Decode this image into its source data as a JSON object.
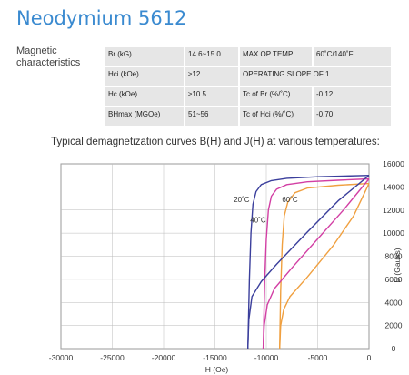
{
  "title": "Neodymium 5612",
  "magnetic_label_line1": "Magnetic",
  "magnetic_label_line2": "characteristics",
  "specs": [
    {
      "k1": "Br (kG)",
      "v1": "14.6~15.0",
      "k2": "MAX OP TEMP",
      "v2": "60˚C/140˚F"
    },
    {
      "k1": "Hci (kOe)",
      "v1": "≥12",
      "k2": "OPERATING SLOPE OF 1",
      "v2": ""
    },
    {
      "k1": "Hc (kOe)",
      "v1": "≥10.5",
      "k2": "Tc of Br (%/˚C)",
      "v2": "-0.12"
    },
    {
      "k1": "BHmax (MGOe)",
      "v1": "51~56",
      "k2": "Tc of Hci (%/˚C)",
      "v2": "-0.70"
    }
  ],
  "chart_caption": "Typical demagnetization curves B(H) and J(H) at various temperatures:",
  "chart_data": {
    "type": "line",
    "xlabel": "H (Oe)",
    "ylabel": "B (Gauss)",
    "xlim": [
      -30000,
      0
    ],
    "ylim": [
      0,
      16000
    ],
    "x_ticks": [
      -30000,
      -25000,
      -20000,
      -15000,
      -10000,
      -5000,
      0
    ],
    "y_ticks": [
      0,
      2000,
      4000,
      6000,
      8000,
      10000,
      12000,
      14000,
      16000
    ],
    "grid": true,
    "series": [
      {
        "name": "20˚C",
        "color": "#3b3f9c",
        "kind": "J",
        "points": [
          [
            -11800,
            0
          ],
          [
            -11650,
            6000
          ],
          [
            -11500,
            10000
          ],
          [
            -11300,
            12500
          ],
          [
            -11000,
            13600
          ],
          [
            -10500,
            14200
          ],
          [
            -9500,
            14550
          ],
          [
            -8000,
            14750
          ],
          [
            -5000,
            14880
          ],
          [
            0,
            15000
          ]
        ]
      },
      {
        "name": "40˚C",
        "color": "#d23fa4",
        "kind": "J",
        "points": [
          [
            -10300,
            0
          ],
          [
            -10150,
            6000
          ],
          [
            -10000,
            9500
          ],
          [
            -9800,
            12000
          ],
          [
            -9500,
            13200
          ],
          [
            -9000,
            13800
          ],
          [
            -8000,
            14200
          ],
          [
            -6000,
            14450
          ],
          [
            -3000,
            14580
          ],
          [
            0,
            14700
          ]
        ]
      },
      {
        "name": "60˚C",
        "color": "#f0a040",
        "kind": "J",
        "points": [
          [
            -8700,
            0
          ],
          [
            -8600,
            5000
          ],
          [
            -8450,
            9000
          ],
          [
            -8250,
            11500
          ],
          [
            -7900,
            12700
          ],
          [
            -7200,
            13500
          ],
          [
            -6000,
            13900
          ],
          [
            -3000,
            14150
          ],
          [
            0,
            14300
          ]
        ]
      },
      {
        "name": "20˚C",
        "color": "#3b3f9c",
        "kind": "B",
        "points": [
          [
            -11800,
            0
          ],
          [
            -11700,
            2500
          ],
          [
            -11400,
            4500
          ],
          [
            -10500,
            5800
          ],
          [
            -9000,
            7300
          ],
          [
            -6000,
            10100
          ],
          [
            -3000,
            12800
          ],
          [
            0,
            15000
          ]
        ]
      },
      {
        "name": "40˚C",
        "color": "#d23fa4",
        "kind": "B",
        "points": [
          [
            -10300,
            0
          ],
          [
            -10200,
            2000
          ],
          [
            -9900,
            3800
          ],
          [
            -9200,
            5200
          ],
          [
            -7500,
            7000
          ],
          [
            -5000,
            9500
          ],
          [
            -2500,
            12000
          ],
          [
            0,
            14700
          ]
        ]
      },
      {
        "name": "60˚C",
        "color": "#f0a040",
        "kind": "B",
        "points": [
          [
            -8700,
            0
          ],
          [
            -8600,
            2000
          ],
          [
            -8300,
            3400
          ],
          [
            -7700,
            4500
          ],
          [
            -6000,
            6200
          ],
          [
            -3500,
            8900
          ],
          [
            -1500,
            11500
          ],
          [
            0,
            14300
          ]
        ]
      }
    ],
    "annotations": [
      {
        "text": "20˚C",
        "color": "#333333",
        "at": [
          -12400,
          12700
        ]
      },
      {
        "text": "40˚C",
        "color": "#333333",
        "at": [
          -10800,
          10900
        ]
      },
      {
        "text": "60˚C",
        "color": "#333333",
        "at": [
          -7700,
          12700
        ]
      }
    ]
  }
}
